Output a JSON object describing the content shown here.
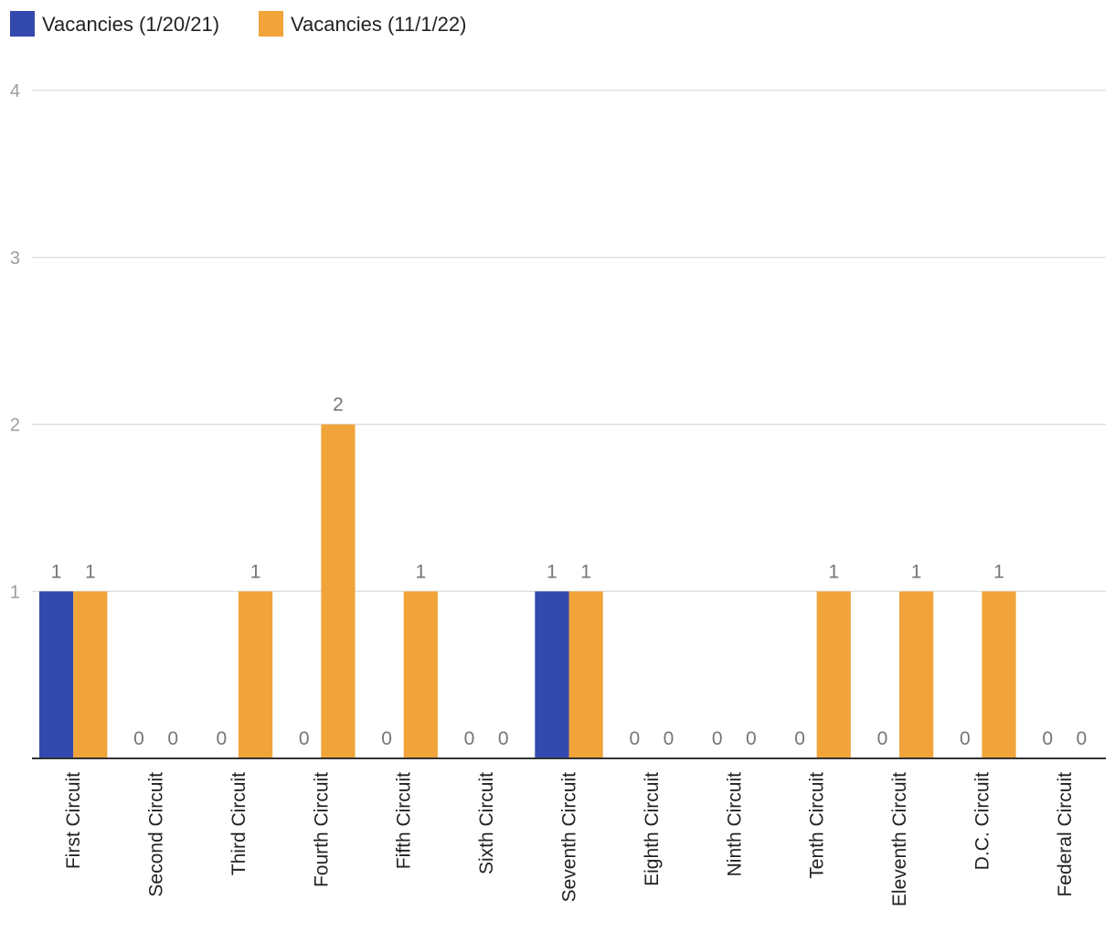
{
  "chart_data": {
    "type": "bar",
    "title": "",
    "xlabel": "",
    "ylabel": "",
    "ylim": [
      0,
      4
    ],
    "yticks": [
      1,
      2,
      3,
      4
    ],
    "grid": true,
    "legend_position": "top-left",
    "categories": [
      "First Circuit",
      "Second Circuit",
      "Third Circuit",
      "Fourth Circuit",
      "Fifth Circuit",
      "Sixth Circuit",
      "Seventh Circuit",
      "Eighth Circuit",
      "Ninth Circuit",
      "Tenth Circuit",
      "Eleventh Circuit",
      "D.C. Circuit",
      "Federal Circuit"
    ],
    "series": [
      {
        "name": "Vacancies (1/20/21)",
        "color": "#3449AE",
        "values": [
          1,
          0,
          0,
          0,
          0,
          0,
          1,
          0,
          0,
          0,
          0,
          0,
          0
        ]
      },
      {
        "name": "Vacancies (11/1/22)",
        "color": "#F0A43A",
        "values": [
          1,
          0,
          1,
          2,
          1,
          0,
          1,
          0,
          0,
          1,
          1,
          1,
          0
        ]
      }
    ]
  }
}
